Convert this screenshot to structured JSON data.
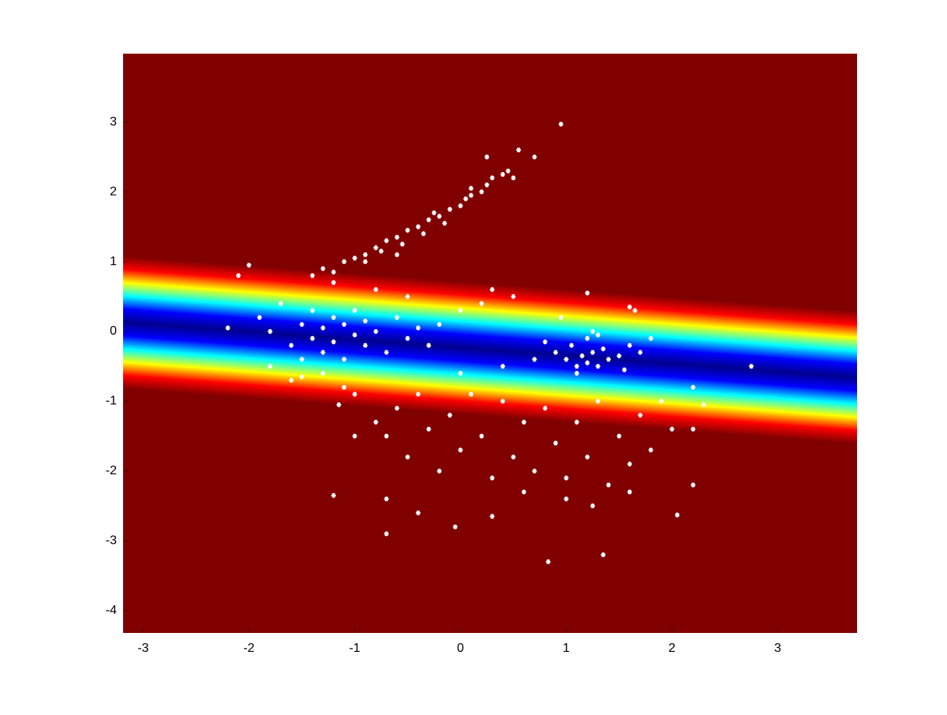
{
  "chart_data": {
    "type": "scatter",
    "xlim": [
      -3.19,
      3.75
    ],
    "ylim": [
      -4.32,
      3.98
    ],
    "xticks": [
      -3,
      -2,
      -1,
      0,
      1,
      2,
      3
    ],
    "yticks": [
      -4,
      -3,
      -2,
      -1,
      0,
      1,
      2,
      3
    ],
    "background_color": "#800000",
    "band": {
      "x": [
        -3.19,
        3.75
      ],
      "y": [
        0.13,
        -0.66
      ],
      "halfwidth": 0.95,
      "colors": [
        "#800000",
        "#ff0000",
        "#ffff00",
        "#00ffff",
        "#0000ff",
        "#00008f"
      ]
    },
    "color": "#ffffff",
    "x": [
      -1.4,
      -1.3,
      -1.2,
      -1.1,
      -1.0,
      -0.9,
      -0.8,
      -0.75,
      -0.7,
      -0.6,
      -0.55,
      -0.5,
      -0.4,
      -0.35,
      -0.3,
      -0.2,
      -0.15,
      -0.1,
      0.0,
      0.05,
      0.1,
      0.2,
      0.25,
      0.3,
      0.4,
      0.45,
      0.5,
      0.55,
      0.25,
      0.7,
      0.95,
      -0.9,
      -1.2,
      -0.6,
      0.1,
      -0.25,
      -2.0,
      -2.1,
      -2.2,
      -1.9,
      -1.8,
      -1.8,
      -1.7,
      -1.6,
      -1.5,
      -1.5,
      -1.4,
      -1.4,
      -1.3,
      -1.3,
      -1.2,
      -1.2,
      -1.1,
      -1.1,
      -1.0,
      -1.0,
      -0.9,
      -0.9,
      -0.8,
      -0.7,
      -0.6,
      -0.5,
      -0.4,
      -0.3,
      -0.2,
      -1.3,
      -1.5,
      0.9,
      1.0,
      1.05,
      1.1,
      1.15,
      1.2,
      1.25,
      1.3,
      1.35,
      1.4,
      1.5,
      1.6,
      1.7,
      1.8,
      0.8,
      0.7,
      1.2,
      1.1,
      1.3,
      1.55,
      1.65,
      0.95,
      1.25,
      2.75,
      -1.15,
      -1.0,
      -0.8,
      -0.7,
      -0.6,
      -0.5,
      -0.4,
      -0.3,
      -0.2,
      -0.1,
      0.0,
      0.1,
      0.2,
      0.3,
      0.4,
      0.5,
      0.6,
      0.7,
      0.8,
      0.9,
      1.0,
      1.1,
      1.2,
      1.3,
      1.4,
      1.5,
      1.6,
      1.7,
      1.8,
      1.9,
      2.0,
      2.2,
      2.3,
      2.2,
      2.2,
      2.05,
      1.35,
      0.83,
      -0.7,
      -0.7,
      -1.2,
      -1.0,
      -0.4,
      -0.05,
      0.3,
      0.6,
      1.0,
      1.25,
      1.6,
      0.0,
      0.4,
      0.5,
      0.3,
      0.2,
      -0.5,
      -0.8,
      1.6,
      1.2,
      0.0,
      -1.1,
      -1.6
    ],
    "values": [
      0.8,
      0.9,
      0.85,
      1.0,
      1.05,
      1.1,
      1.2,
      1.15,
      1.3,
      1.35,
      1.25,
      1.45,
      1.5,
      1.4,
      1.6,
      1.65,
      1.55,
      1.75,
      1.8,
      1.9,
      1.95,
      2.0,
      2.1,
      2.2,
      2.25,
      2.3,
      2.2,
      2.6,
      2.5,
      2.5,
      2.97,
      1.0,
      0.7,
      1.1,
      2.05,
      1.7,
      0.95,
      0.8,
      0.05,
      0.2,
      0.0,
      -0.5,
      0.4,
      -0.2,
      0.1,
      -0.4,
      0.3,
      -0.1,
      0.05,
      -0.3,
      0.2,
      -0.15,
      0.1,
      -0.4,
      0.3,
      -0.05,
      -0.2,
      0.15,
      0.0,
      -0.3,
      0.2,
      -0.1,
      0.05,
      -0.2,
      0.1,
      -0.6,
      -0.65,
      -0.3,
      -0.4,
      -0.2,
      -0.5,
      -0.35,
      -0.45,
      -0.3,
      -0.5,
      -0.25,
      -0.4,
      -0.35,
      -0.2,
      -0.3,
      -0.1,
      -0.15,
      -0.4,
      -0.1,
      -0.6,
      -0.05,
      -0.55,
      0.3,
      0.2,
      0.0,
      -0.5,
      -1.05,
      -0.9,
      -1.3,
      -1.5,
      -1.1,
      -1.8,
      -0.9,
      -1.4,
      -2.0,
      -1.2,
      -1.7,
      -0.9,
      -1.5,
      -2.1,
      -1.0,
      -1.8,
      -1.3,
      -2.0,
      -1.1,
      -1.6,
      -2.1,
      -1.3,
      -1.8,
      -1.0,
      -2.2,
      -1.5,
      -1.9,
      -1.2,
      -1.7,
      -1.0,
      -1.4,
      -0.8,
      -1.05,
      -1.4,
      -2.2,
      -2.63,
      -3.2,
      -3.3,
      -2.9,
      -2.4,
      -2.35,
      -1.5,
      -2.6,
      -2.8,
      -2.65,
      -2.3,
      -2.4,
      -2.5,
      -2.3,
      -0.6,
      -0.5,
      0.5,
      0.6,
      0.4,
      0.5,
      0.6,
      0.35,
      0.55,
      0.3,
      -0.8,
      -0.7
    ]
  }
}
